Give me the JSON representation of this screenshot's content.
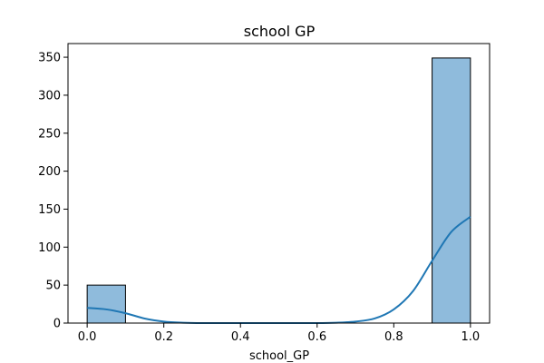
{
  "chart_data": {
    "type": "bar",
    "title": "school GP",
    "xlabel": "school_GP",
    "ylabel": "",
    "xlim": [
      -0.05,
      1.05
    ],
    "ylim": [
      0,
      368
    ],
    "x_ticks": [
      "0.0",
      "0.2",
      "0.4",
      "0.6",
      "0.8",
      "1.0"
    ],
    "x_tick_values": [
      0.0,
      0.2,
      0.4,
      0.6,
      0.8,
      1.0
    ],
    "y_ticks": [
      "0",
      "50",
      "100",
      "150",
      "200",
      "250",
      "300",
      "350"
    ],
    "y_tick_values": [
      0,
      50,
      100,
      150,
      200,
      250,
      300,
      350
    ],
    "bins": [
      {
        "x0": 0.0,
        "x1": 0.1,
        "count": 50
      },
      {
        "x0": 0.1,
        "x1": 0.2,
        "count": 0
      },
      {
        "x0": 0.2,
        "x1": 0.3,
        "count": 0
      },
      {
        "x0": 0.3,
        "x1": 0.4,
        "count": 0
      },
      {
        "x0": 0.4,
        "x1": 0.5,
        "count": 0
      },
      {
        "x0": 0.5,
        "x1": 0.6,
        "count": 0
      },
      {
        "x0": 0.6,
        "x1": 0.7,
        "count": 0
      },
      {
        "x0": 0.7,
        "x1": 0.8,
        "count": 0
      },
      {
        "x0": 0.8,
        "x1": 0.9,
        "count": 0
      },
      {
        "x0": 0.9,
        "x1": 1.0,
        "count": 349
      }
    ],
    "kde_curve": {
      "x": [
        0.0,
        0.05,
        0.1,
        0.15,
        0.2,
        0.25,
        0.3,
        0.4,
        0.5,
        0.6,
        0.65,
        0.7,
        0.75,
        0.8,
        0.85,
        0.9,
        0.95,
        1.0
      ],
      "y": [
        20,
        18,
        13,
        6,
        2,
        0.5,
        0,
        0,
        0,
        0,
        0.5,
        2,
        6,
        18,
        42,
        82,
        120,
        140
      ]
    },
    "colors": {
      "bar_fill": "#8fbbdc",
      "bar_edge": "#000000",
      "kde_line": "#1f77b4"
    },
    "grid": false,
    "legend": "none"
  }
}
